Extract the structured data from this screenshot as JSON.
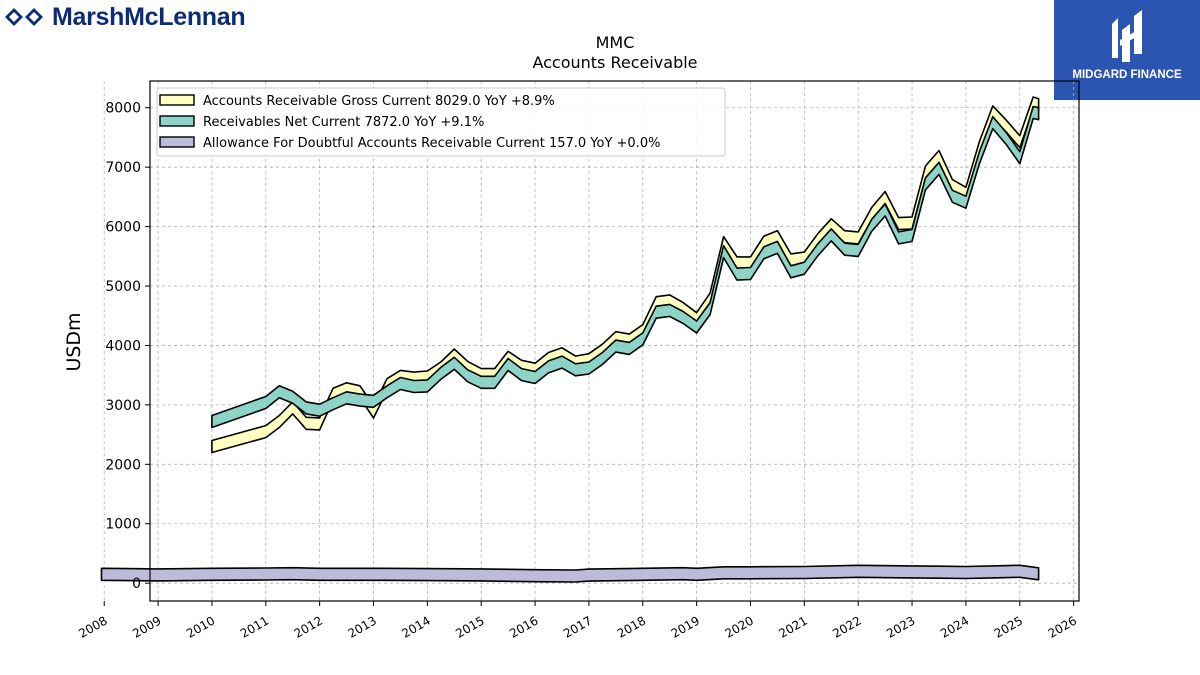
{
  "brand": {
    "left_logo": "MarshMcLennan",
    "right_logo": "MIDGARD FINANCE",
    "left_color": "#0b2d78",
    "right_bg": "#2b55b0"
  },
  "chart_data": {
    "type": "line",
    "title": "MMC",
    "subtitle": "Accounts Receivable",
    "ylabel": "USDm",
    "xlabel": "",
    "ylim": [
      -300,
      8450
    ],
    "xlim": [
      2008.85,
      2026.1
    ],
    "yticks": [
      0,
      1000,
      2000,
      3000,
      4000,
      5000,
      6000,
      7000,
      8000
    ],
    "xticks": [
      2008,
      2009,
      2010,
      2011,
      2012,
      2013,
      2014,
      2015,
      2016,
      2017,
      2018,
      2019,
      2020,
      2021,
      2022,
      2023,
      2024,
      2025,
      2026
    ],
    "grid": true,
    "legend_position": "top-left",
    "series": [
      {
        "name": "Accounts Receivable Gross Current",
        "legend_label": "Accounts Receivable Gross Current  8029.0 YoY +8.9%",
        "color": "#ffffbf",
        "points": [
          [
            2010.0,
            2300
          ],
          [
            2011.0,
            2550
          ],
          [
            2011.25,
            2720
          ],
          [
            2011.5,
            2950
          ],
          [
            2011.75,
            2690
          ],
          [
            2012.0,
            2680
          ],
          [
            2012.25,
            3180
          ],
          [
            2012.5,
            3270
          ],
          [
            2012.75,
            3220
          ],
          [
            2013.0,
            2880
          ],
          [
            2013.25,
            3340
          ],
          [
            2013.5,
            3480
          ],
          [
            2013.75,
            3450
          ],
          [
            2014.0,
            3470
          ],
          [
            2014.25,
            3620
          ],
          [
            2014.5,
            3840
          ],
          [
            2014.75,
            3630
          ],
          [
            2015.0,
            3510
          ],
          [
            2015.25,
            3510
          ],
          [
            2015.5,
            3800
          ],
          [
            2015.75,
            3650
          ],
          [
            2016.0,
            3600
          ],
          [
            2016.25,
            3780
          ],
          [
            2016.5,
            3860
          ],
          [
            2016.75,
            3720
          ],
          [
            2017.0,
            3760
          ],
          [
            2017.25,
            3920
          ],
          [
            2017.5,
            4130
          ],
          [
            2017.75,
            4090
          ],
          [
            2018.0,
            4250
          ],
          [
            2018.25,
            4720
          ],
          [
            2018.5,
            4750
          ],
          [
            2018.75,
            4620
          ],
          [
            2019.0,
            4450
          ],
          [
            2019.25,
            4780
          ],
          [
            2019.5,
            5730
          ],
          [
            2019.75,
            5390
          ],
          [
            2020.0,
            5390
          ],
          [
            2020.25,
            5740
          ],
          [
            2020.5,
            5830
          ],
          [
            2020.75,
            5440
          ],
          [
            2021.0,
            5470
          ],
          [
            2021.25,
            5780
          ],
          [
            2021.5,
            6030
          ],
          [
            2021.75,
            5830
          ],
          [
            2022.0,
            5810
          ],
          [
            2022.25,
            6220
          ],
          [
            2022.5,
            6490
          ],
          [
            2022.75,
            6050
          ],
          [
            2023.0,
            6060
          ],
          [
            2023.25,
            6920
          ],
          [
            2023.5,
            7180
          ],
          [
            2023.75,
            6690
          ],
          [
            2024.0,
            6560
          ],
          [
            2024.25,
            7330
          ],
          [
            2024.5,
            7930
          ],
          [
            2024.75,
            7690
          ],
          [
            2025.0,
            7430
          ],
          [
            2025.25,
            8080
          ],
          [
            2025.35,
            8050
          ]
        ]
      },
      {
        "name": "Receivables Net Current",
        "legend_label": "Receivables Net Current  7872.0 YoY +9.1%",
        "color": "#8dd3c7",
        "points": [
          [
            2010.0,
            2720
          ],
          [
            2011.0,
            3040
          ],
          [
            2011.25,
            3220
          ],
          [
            2011.5,
            3130
          ],
          [
            2011.75,
            2950
          ],
          [
            2012.0,
            2910
          ],
          [
            2012.25,
            3020
          ],
          [
            2012.5,
            3120
          ],
          [
            2012.75,
            3080
          ],
          [
            2013.0,
            3060
          ],
          [
            2013.25,
            3220
          ],
          [
            2013.5,
            3360
          ],
          [
            2013.75,
            3310
          ],
          [
            2014.0,
            3320
          ],
          [
            2014.25,
            3530
          ],
          [
            2014.5,
            3700
          ],
          [
            2014.75,
            3490
          ],
          [
            2015.0,
            3380
          ],
          [
            2015.25,
            3380
          ],
          [
            2015.5,
            3680
          ],
          [
            2015.75,
            3510
          ],
          [
            2016.0,
            3460
          ],
          [
            2016.25,
            3640
          ],
          [
            2016.5,
            3720
          ],
          [
            2016.75,
            3590
          ],
          [
            2017.0,
            3620
          ],
          [
            2017.25,
            3780
          ],
          [
            2017.5,
            3990
          ],
          [
            2017.75,
            3950
          ],
          [
            2018.0,
            4110
          ],
          [
            2018.25,
            4560
          ],
          [
            2018.5,
            4590
          ],
          [
            2018.75,
            4470
          ],
          [
            2019.0,
            4310
          ],
          [
            2019.25,
            4620
          ],
          [
            2019.5,
            5580
          ],
          [
            2019.75,
            5200
          ],
          [
            2020.0,
            5210
          ],
          [
            2020.25,
            5560
          ],
          [
            2020.5,
            5650
          ],
          [
            2020.75,
            5240
          ],
          [
            2021.0,
            5300
          ],
          [
            2021.25,
            5610
          ],
          [
            2021.5,
            5860
          ],
          [
            2021.75,
            5620
          ],
          [
            2022.0,
            5600
          ],
          [
            2022.25,
            6020
          ],
          [
            2022.5,
            6280
          ],
          [
            2022.75,
            5810
          ],
          [
            2023.0,
            5850
          ],
          [
            2023.25,
            6720
          ],
          [
            2023.5,
            6980
          ],
          [
            2023.75,
            6510
          ],
          [
            2024.0,
            6410
          ],
          [
            2024.25,
            7160
          ],
          [
            2024.5,
            7750
          ],
          [
            2024.75,
            7480
          ],
          [
            2025.0,
            7160
          ],
          [
            2025.25,
            7920
          ],
          [
            2025.35,
            7900
          ]
        ]
      },
      {
        "name": "Allowance For Doubtful Accounts Receivable Current",
        "legend_label": "Allowance For Doubtful Accounts Receivable Current  157.0 YoY +0.0%",
        "color": "#bebada",
        "points": [
          [
            2007.95,
            150
          ],
          [
            2009.0,
            140
          ],
          [
            2010.0,
            150
          ],
          [
            2011.0,
            155
          ],
          [
            2011.5,
            160
          ],
          [
            2012.0,
            150
          ],
          [
            2013.0,
            150
          ],
          [
            2014.0,
            145
          ],
          [
            2015.0,
            140
          ],
          [
            2016.0,
            125
          ],
          [
            2016.75,
            120
          ],
          [
            2017.0,
            135
          ],
          [
            2018.0,
            150
          ],
          [
            2018.75,
            160
          ],
          [
            2019.0,
            150
          ],
          [
            2019.5,
            175
          ],
          [
            2020.0,
            175
          ],
          [
            2021.0,
            180
          ],
          [
            2022.0,
            200
          ],
          [
            2023.0,
            190
          ],
          [
            2023.5,
            185
          ],
          [
            2024.0,
            180
          ],
          [
            2024.5,
            190
          ],
          [
            2025.0,
            200
          ],
          [
            2025.35,
            157
          ]
        ]
      }
    ]
  }
}
